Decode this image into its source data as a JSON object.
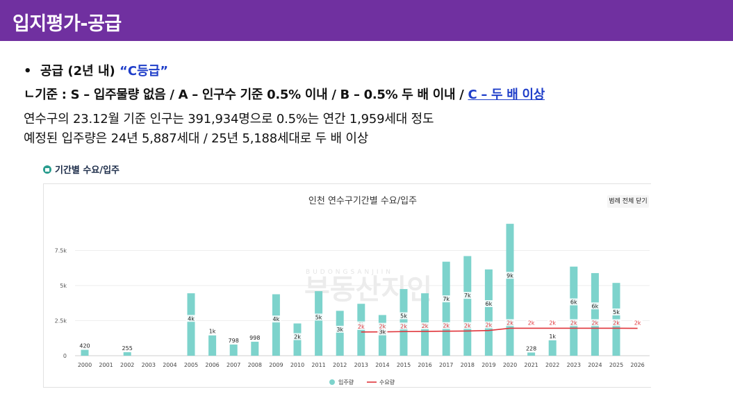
{
  "header": {
    "title": "입지평가-공급"
  },
  "bullet": {
    "dot": "•",
    "label": "공급 (2년 내) ",
    "grade": "“C등급”"
  },
  "criteria": {
    "text": "ㄴ기준 : S – 입주물량 없음 / A – 인구수 기준 0.5% 이내 / B – 0.5% 두 배 이내 / ",
    "highlight": "C – 두 배 이상"
  },
  "body": {
    "line1": "연수구의 23.12월 기준 인구는 391,934명으로 0.5%는 연간 1,959세대 정도",
    "line2": "예정된 입주량은 24년 5,887세대 / 25년 5,188세대로 두 배 이상"
  },
  "section": {
    "label": "기간별 수요/입주",
    "icon": "home-icon"
  },
  "legend_toggle": "범례 전체 닫기",
  "watermark": {
    "small": "BUDONGSANJIIN",
    "big": "부동산지인"
  },
  "colors": {
    "header": "#7030a0",
    "bar": "#7dd3cc",
    "demand": "#e0343a",
    "accent_text": "#1f3ec9"
  },
  "chart_data": {
    "type": "bar",
    "title": "인천 연수구기간별 수요/입주",
    "categories": [
      "2000",
      "2001",
      "2002",
      "2003",
      "2004",
      "2005",
      "2006",
      "2007",
      "2008",
      "2009",
      "2010",
      "2011",
      "2012",
      "2013",
      "2014",
      "2015",
      "2016",
      "2017",
      "2018",
      "2019",
      "2020",
      "2021",
      "2022",
      "2023",
      "2024",
      "2025",
      "2026"
    ],
    "ylim": [
      0,
      10000
    ],
    "yticks": [
      {
        "value": 0,
        "label": "0"
      },
      {
        "value": 2500,
        "label": "2.5k"
      },
      {
        "value": 5000,
        "label": "5k"
      },
      {
        "value": 7500,
        "label": "7.5k"
      }
    ],
    "grid": true,
    "legend": "bottom",
    "series": [
      {
        "name": "입주량",
        "type": "bar",
        "values": [
          420,
          0,
          255,
          0,
          0,
          4450,
          1450,
          798,
          998,
          4380,
          2300,
          4600,
          3200,
          3700,
          2900,
          4750,
          4450,
          6700,
          7100,
          6150,
          9400,
          228,
          1100,
          6350,
          5887,
          5188,
          0
        ],
        "labels": [
          "420",
          "",
          "255",
          "",
          "",
          "4k",
          "1k",
          "798",
          "998",
          "4k",
          "2k",
          "5k",
          "3k",
          "4k",
          "3k",
          "5k",
          "",
          "7k",
          "7k",
          "6k",
          "9k",
          "228",
          "1k",
          "6k",
          "6k",
          "5k",
          ""
        ]
      },
      {
        "name": "수요량",
        "type": "line",
        "x_start": "2013",
        "values": [
          null,
          null,
          null,
          null,
          null,
          null,
          null,
          null,
          null,
          null,
          null,
          null,
          null,
          1690,
          1700,
          1720,
          1730,
          1750,
          1760,
          1800,
          1960,
          1960,
          1960,
          1960,
          1960,
          1960,
          1950
        ],
        "labels": [
          null,
          null,
          null,
          null,
          null,
          null,
          null,
          null,
          null,
          null,
          null,
          null,
          null,
          "2k",
          "2k",
          "2k",
          "2k",
          "2k",
          "2k",
          "2k",
          "2k",
          "2k",
          "2k",
          "2k",
          "2k",
          "2k",
          "2k"
        ]
      }
    ]
  }
}
